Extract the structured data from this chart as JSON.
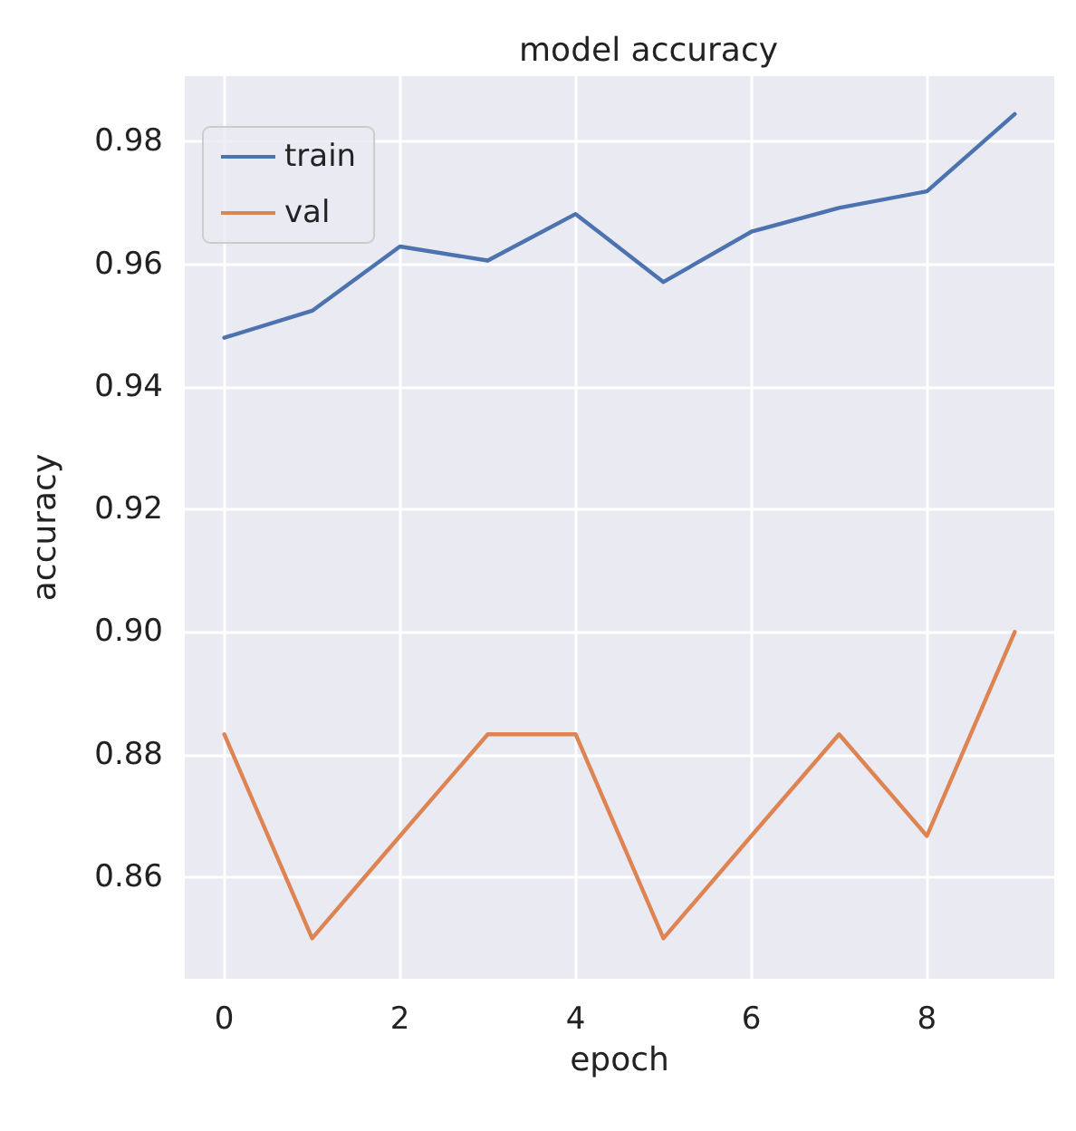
{
  "chart_data": {
    "type": "line",
    "title": "model accuracy",
    "xlabel": "epoch",
    "ylabel": "accuracy",
    "x": [
      0,
      1,
      2,
      3,
      4,
      5,
      6,
      7,
      8,
      9
    ],
    "series": [
      {
        "name": "train",
        "color": "#4c72b0",
        "values": [
          0.948,
          0.9524,
          0.9629,
          0.9606,
          0.9682,
          0.9571,
          0.9653,
          0.9692,
          0.9719,
          0.9845
        ]
      },
      {
        "name": "val",
        "color": "#dd8452",
        "values": [
          0.8833,
          0.85,
          0.8667,
          0.8833,
          0.8833,
          0.85,
          0.8667,
          0.8833,
          0.8667,
          0.9
        ]
      }
    ],
    "xlim": [
      -0.45,
      9.45
    ],
    "xticks": [
      0,
      2,
      4,
      6,
      8
    ],
    "ylim": [
      0.8434,
      0.9907
    ],
    "yticks": [
      0.86,
      0.88,
      {
        "value": 0.9,
        "label": "0.90"
      },
      0.92,
      0.94,
      0.96,
      0.98
    ],
    "grid": true,
    "legend": "top left",
    "marker": "none",
    "line_style": "solid"
  }
}
